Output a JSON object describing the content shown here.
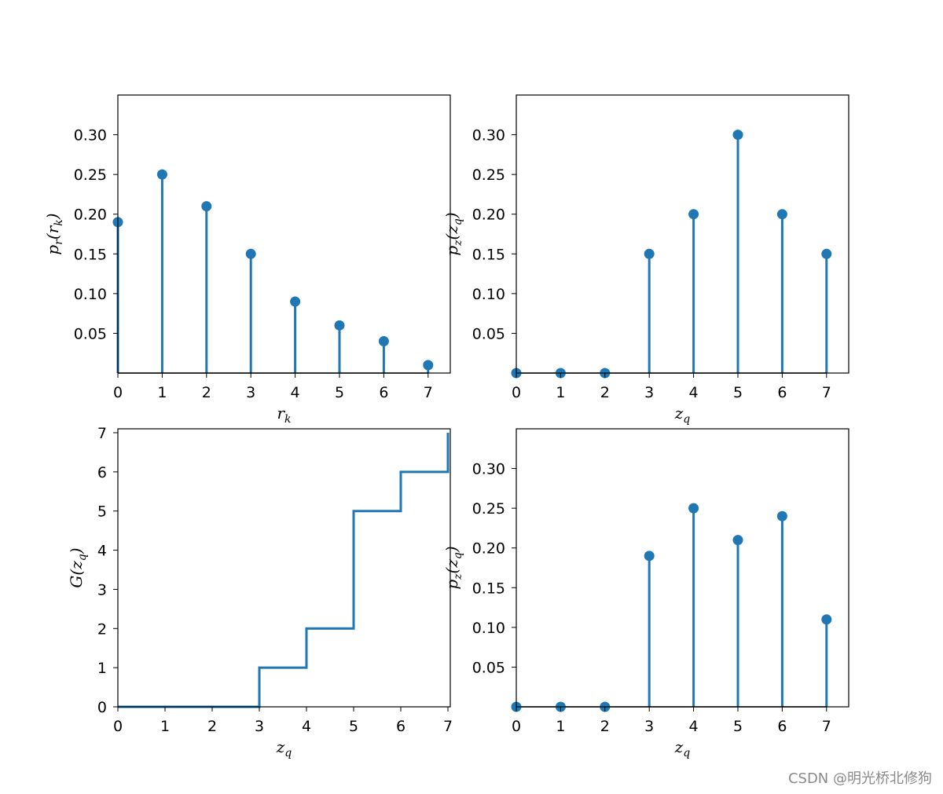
{
  "chart_data": [
    {
      "type": "stem",
      "title": "",
      "xlabel": "r_k",
      "ylabel": "p_r(r_k)",
      "x": [
        0,
        1,
        2,
        3,
        4,
        5,
        6,
        7
      ],
      "values": [
        0.19,
        0.25,
        0.21,
        0.15,
        0.09,
        0.06,
        0.04,
        0.01
      ],
      "xlim": [
        0,
        7.5
      ],
      "ylim": [
        0,
        0.35
      ],
      "xticks": [
        "0",
        "1",
        "2",
        "3",
        "4",
        "5",
        "6",
        "7"
      ],
      "yticks": [
        "0.05",
        "0.10",
        "0.15",
        "0.20",
        "0.25",
        "0.30"
      ],
      "color": "#1f77b4"
    },
    {
      "type": "stem",
      "title": "",
      "xlabel": "z_q",
      "ylabel": "p_z(z_q)",
      "x": [
        0,
        1,
        2,
        3,
        4,
        5,
        6,
        7
      ],
      "values": [
        0,
        0,
        0,
        0.15,
        0.2,
        0.3,
        0.2,
        0.15
      ],
      "xlim": [
        0,
        7.5
      ],
      "ylim": [
        0,
        0.35
      ],
      "xticks": [
        "0",
        "1",
        "2",
        "3",
        "4",
        "5",
        "6",
        "7"
      ],
      "yticks": [
        "0.05",
        "0.10",
        "0.15",
        "0.20",
        "0.25",
        "0.30"
      ],
      "color": "#1f77b4"
    },
    {
      "type": "step",
      "title": "",
      "xlabel": "z_q",
      "ylabel": "G(z_q)",
      "x": [
        0,
        1,
        2,
        3,
        4,
        5,
        6,
        7
      ],
      "values": [
        0,
        0,
        0,
        1,
        2,
        5,
        6,
        7
      ],
      "xlim": [
        0,
        7.05
      ],
      "ylim": [
        0,
        7.1
      ],
      "xticks": [
        "0",
        "1",
        "2",
        "3",
        "4",
        "5",
        "6",
        "7"
      ],
      "yticks": [
        "0",
        "1",
        "2",
        "3",
        "4",
        "5",
        "6",
        "7"
      ],
      "color": "#1f77b4"
    },
    {
      "type": "stem",
      "title": "",
      "xlabel": "z_q",
      "ylabel": "p_z(z_q)",
      "x": [
        0,
        1,
        2,
        3,
        4,
        5,
        6,
        7
      ],
      "values": [
        0,
        0,
        0,
        0.19,
        0.25,
        0.21,
        0.24,
        0.11
      ],
      "xlim": [
        0,
        7.5
      ],
      "ylim": [
        0,
        0.35
      ],
      "xticks": [
        "0",
        "1",
        "2",
        "3",
        "4",
        "5",
        "6",
        "7"
      ],
      "yticks": [
        "0.05",
        "0.10",
        "0.15",
        "0.20",
        "0.25",
        "0.30"
      ],
      "color": "#1f77b4"
    }
  ],
  "labels": [
    {
      "xlabel": {
        "main": "r",
        "sub": "k"
      },
      "ylabel": {
        "f": "p",
        "fsub": "r",
        "arg": "r",
        "argsub": "k"
      }
    },
    {
      "xlabel": {
        "main": "z",
        "sub": "q"
      },
      "ylabel": {
        "f": "p",
        "fsub": "z",
        "arg": "z",
        "argsub": "q"
      }
    },
    {
      "xlabel": {
        "main": "z",
        "sub": "q"
      },
      "ylabel": {
        "f": "G",
        "fsub": "",
        "arg": "z",
        "argsub": "q"
      }
    },
    {
      "xlabel": {
        "main": "z",
        "sub": "q"
      },
      "ylabel": {
        "f": "p",
        "fsub": "z",
        "arg": "z",
        "argsub": "q"
      }
    }
  ],
  "watermark": "CSDN @明光桥北修狗"
}
